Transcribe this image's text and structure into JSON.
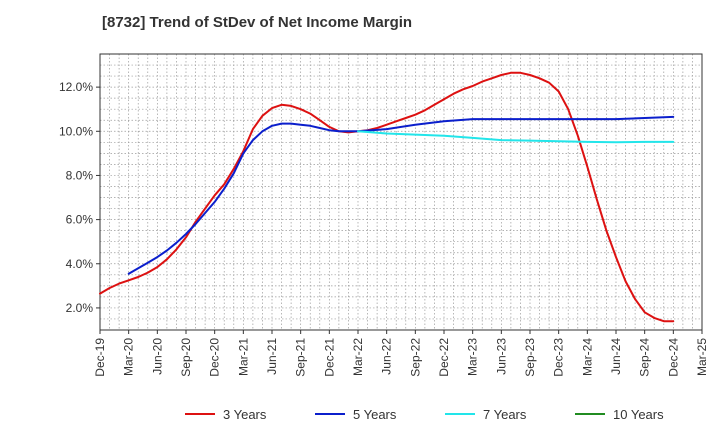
{
  "chart_data": {
    "type": "line",
    "title": "[8732]  Trend of StDev of Net Income Margin",
    "xlabel": "",
    "ylabel": "",
    "x_ticks": [
      "Dec-19",
      "Mar-20",
      "Jun-20",
      "Sep-20",
      "Dec-20",
      "Mar-21",
      "Jun-21",
      "Sep-21",
      "Dec-21",
      "Mar-22",
      "Jun-22",
      "Sep-22",
      "Dec-22",
      "Mar-23",
      "Jun-23",
      "Sep-23",
      "Dec-23",
      "Mar-24",
      "Jun-24",
      "Sep-24",
      "Dec-24",
      "Mar-25"
    ],
    "y_ticks": [
      2.0,
      4.0,
      6.0,
      8.0,
      10.0,
      12.0
    ],
    "y_tick_labels": [
      "2.0%",
      "4.0%",
      "6.0%",
      "8.0%",
      "10.0%",
      "12.0%"
    ],
    "ylim": [
      1.0,
      13.5
    ],
    "grid": true,
    "legend_position": "bottom",
    "series": [
      {
        "name": "3 Years",
        "color": "#dd1111",
        "x": [
          "Dec-19",
          "Jan-20",
          "Feb-20",
          "Mar-20",
          "Apr-20",
          "May-20",
          "Jun-20",
          "Jul-20",
          "Aug-20",
          "Sep-20",
          "Oct-20",
          "Nov-20",
          "Dec-20",
          "Jan-21",
          "Feb-21",
          "Mar-21",
          "Apr-21",
          "May-21",
          "Jun-21",
          "Jul-21",
          "Aug-21",
          "Sep-21",
          "Oct-21",
          "Nov-21",
          "Dec-21",
          "Jan-22",
          "Feb-22",
          "Mar-22",
          "Apr-22",
          "May-22",
          "Jun-22",
          "Jul-22",
          "Aug-22",
          "Sep-22",
          "Oct-22",
          "Nov-22",
          "Dec-22",
          "Jan-23",
          "Feb-23",
          "Mar-23",
          "Apr-23",
          "May-23",
          "Jun-23",
          "Jul-23",
          "Aug-23",
          "Sep-23",
          "Oct-23",
          "Nov-23",
          "Dec-23",
          "Jan-24",
          "Feb-24",
          "Mar-24",
          "Apr-24",
          "May-24",
          "Jun-24",
          "Jul-24",
          "Aug-24",
          "Sep-24",
          "Oct-24",
          "Nov-24",
          "Dec-24"
        ],
        "values": [
          2.65,
          2.9,
          3.1,
          3.25,
          3.4,
          3.6,
          3.85,
          4.2,
          4.65,
          5.2,
          5.9,
          6.5,
          7.1,
          7.6,
          8.3,
          9.1,
          10.1,
          10.7,
          11.05,
          11.2,
          11.15,
          11.0,
          10.8,
          10.5,
          10.2,
          10.0,
          9.95,
          10.0,
          10.05,
          10.15,
          10.3,
          10.45,
          10.6,
          10.75,
          10.95,
          11.2,
          11.45,
          11.7,
          11.9,
          12.05,
          12.25,
          12.4,
          12.55,
          12.65,
          12.65,
          12.55,
          12.4,
          12.2,
          11.8,
          11.0,
          9.8,
          8.4,
          6.9,
          5.5,
          4.3,
          3.2,
          2.4,
          1.8,
          1.55,
          1.4,
          1.4
        ]
      },
      {
        "name": "5 Years",
        "color": "#0b1fcc",
        "x": [
          "Mar-20",
          "Apr-20",
          "May-20",
          "Jun-20",
          "Jul-20",
          "Aug-20",
          "Sep-20",
          "Oct-20",
          "Nov-20",
          "Dec-20",
          "Jan-21",
          "Feb-21",
          "Mar-21",
          "Apr-21",
          "May-21",
          "Jun-21",
          "Jul-21",
          "Aug-21",
          "Sep-21",
          "Oct-21",
          "Nov-21",
          "Dec-21",
          "Jan-22",
          "Feb-22",
          "Mar-22",
          "Jun-22",
          "Sep-22",
          "Dec-22",
          "Mar-23",
          "Jun-23",
          "Sep-23",
          "Dec-23",
          "Mar-24",
          "Jun-24",
          "Sep-24",
          "Dec-24"
        ],
        "values": [
          3.55,
          3.8,
          4.05,
          4.3,
          4.6,
          4.95,
          5.35,
          5.8,
          6.3,
          6.8,
          7.4,
          8.1,
          9.0,
          9.6,
          10.0,
          10.25,
          10.35,
          10.35,
          10.3,
          10.25,
          10.15,
          10.05,
          10.0,
          10.0,
          10.0,
          10.1,
          10.3,
          10.45,
          10.55,
          10.55,
          10.55,
          10.55,
          10.55,
          10.55,
          10.6,
          10.65
        ]
      },
      {
        "name": "7 Years",
        "color": "#22e5ea",
        "x": [
          "Mar-22",
          "Jun-22",
          "Sep-22",
          "Dec-22",
          "Mar-23",
          "Jun-23",
          "Sep-23",
          "Dec-23",
          "Mar-24",
          "Jun-24",
          "Sep-24",
          "Dec-24"
        ],
        "values": [
          10.0,
          9.9,
          9.85,
          9.8,
          9.7,
          9.6,
          9.58,
          9.55,
          9.52,
          9.5,
          9.52,
          9.52
        ]
      },
      {
        "name": "10 Years",
        "color": "#218c21",
        "x": [],
        "values": []
      }
    ]
  }
}
